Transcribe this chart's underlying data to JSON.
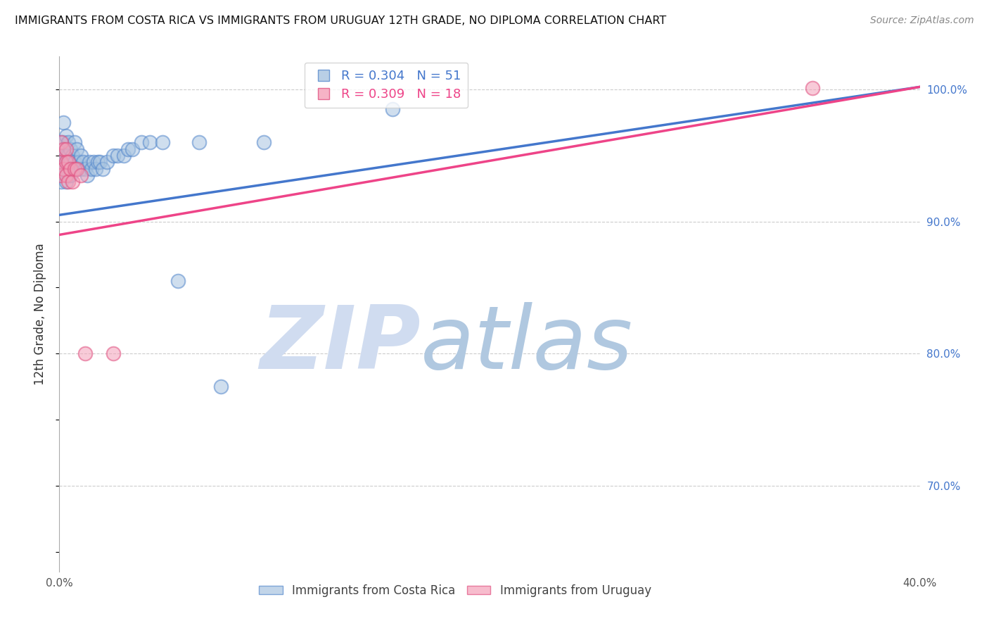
{
  "title": "IMMIGRANTS FROM COSTA RICA VS IMMIGRANTS FROM URUGUAY 12TH GRADE, NO DIPLOMA CORRELATION CHART",
  "source": "Source: ZipAtlas.com",
  "ylabel": "12th Grade, No Diploma",
  "xlim": [
    0.0,
    0.4
  ],
  "ylim": [
    0.635,
    1.025
  ],
  "legend_r1": "R = 0.304",
  "legend_n1": "N = 51",
  "legend_r2": "R = 0.309",
  "legend_n2": "N = 18",
  "blue_color": "#A8C4E0",
  "blue_edge": "#5588CC",
  "pink_color": "#F4A0B8",
  "pink_edge": "#E05080",
  "line_blue": "#4477CC",
  "line_pink": "#EE4488",
  "watermark_zip": "ZIP",
  "watermark_atlas": "atlas",
  "watermark_color_zip": "#D0DCF0",
  "watermark_color_atlas": "#B0C8E0",
  "background_color": "#FFFFFF",
  "blue_line_x0": 0.0,
  "blue_line_y0": 0.905,
  "blue_line_x1": 0.4,
  "blue_line_y1": 1.002,
  "pink_line_x0": 0.0,
  "pink_line_y0": 0.89,
  "pink_line_x1": 0.4,
  "pink_line_y1": 1.002,
  "costa_rica_x": [
    0.001,
    0.001,
    0.001,
    0.002,
    0.002,
    0.002,
    0.002,
    0.003,
    0.003,
    0.003,
    0.003,
    0.004,
    0.004,
    0.004,
    0.004,
    0.005,
    0.005,
    0.005,
    0.006,
    0.006,
    0.007,
    0.007,
    0.008,
    0.008,
    0.009,
    0.01,
    0.01,
    0.011,
    0.012,
    0.013,
    0.014,
    0.015,
    0.016,
    0.017,
    0.018,
    0.019,
    0.02,
    0.022,
    0.025,
    0.027,
    0.03,
    0.032,
    0.034,
    0.038,
    0.042,
    0.048,
    0.055,
    0.065,
    0.075,
    0.095,
    0.155
  ],
  "costa_rica_y": [
    0.96,
    0.945,
    0.93,
    0.975,
    0.96,
    0.95,
    0.94,
    0.965,
    0.95,
    0.94,
    0.93,
    0.96,
    0.95,
    0.945,
    0.935,
    0.955,
    0.945,
    0.935,
    0.95,
    0.94,
    0.96,
    0.945,
    0.955,
    0.94,
    0.945,
    0.95,
    0.94,
    0.945,
    0.94,
    0.935,
    0.945,
    0.94,
    0.945,
    0.94,
    0.945,
    0.945,
    0.94,
    0.945,
    0.95,
    0.95,
    0.95,
    0.955,
    0.955,
    0.96,
    0.96,
    0.96,
    0.855,
    0.96,
    0.775,
    0.96,
    0.985
  ],
  "uruguay_x": [
    0.001,
    0.001,
    0.001,
    0.002,
    0.002,
    0.003,
    0.003,
    0.003,
    0.004,
    0.004,
    0.005,
    0.006,
    0.007,
    0.008,
    0.01,
    0.012,
    0.025,
    0.35
  ],
  "uruguay_y": [
    0.96,
    0.945,
    0.935,
    0.955,
    0.94,
    0.955,
    0.945,
    0.935,
    0.945,
    0.93,
    0.94,
    0.93,
    0.94,
    0.94,
    0.935,
    0.8,
    0.8,
    1.001
  ]
}
